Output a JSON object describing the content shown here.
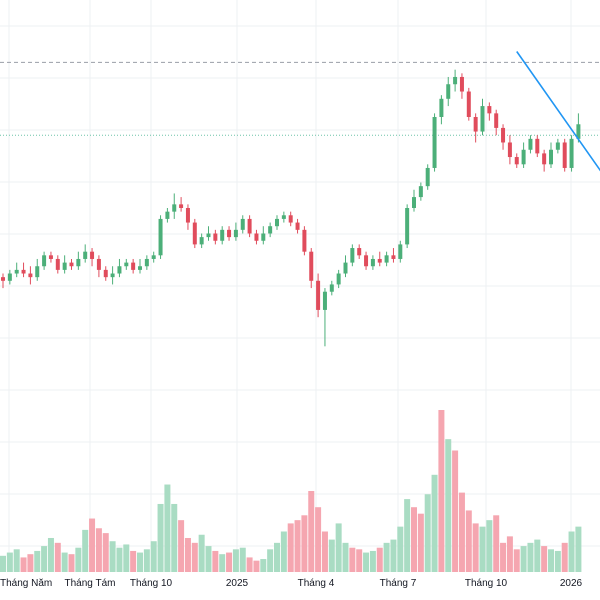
{
  "chart_data": {
    "type": "candlestick",
    "x_tick_labels": [
      "Tháng Năm",
      "Tháng Tám",
      "Tháng 10",
      "2025",
      "Tháng 4",
      "Tháng 7",
      "Tháng 10",
      "2026"
    ],
    "price_range": [
      0,
      100
    ],
    "volume_range": [
      0,
      100
    ],
    "grid": true,
    "reference_lines": [
      {
        "style": "dashed",
        "price": 90
      },
      {
        "style": "dotted",
        "price": 70
      }
    ],
    "trendline": {
      "from": {
        "index": 75,
        "price": 93
      },
      "to": {
        "index": 103,
        "price": 18
      }
    },
    "colors": {
      "up": "#4caf79",
      "down": "#e04c5c",
      "up_volume": "#a9dcc3",
      "down_volume": "#f5a6b0",
      "trendline": "#2196f3",
      "grid": "#eef0f3",
      "ref_dashed": "#9a9ea8",
      "ref_dotted": "#6fc3a8"
    },
    "candles": [
      [
        31,
        30,
        32,
        28
      ],
      [
        30,
        32,
        33,
        29
      ],
      [
        32,
        33,
        35,
        31
      ],
      [
        33,
        32,
        35,
        31
      ],
      [
        32,
        31,
        34,
        29
      ],
      [
        31,
        34,
        36,
        30
      ],
      [
        34,
        37,
        38,
        33
      ],
      [
        37,
        36,
        38,
        35
      ],
      [
        36,
        33,
        37,
        32
      ],
      [
        33,
        35,
        37,
        32
      ],
      [
        35,
        34,
        36,
        33
      ],
      [
        34,
        36,
        38,
        33
      ],
      [
        36,
        38,
        40,
        35
      ],
      [
        38,
        36,
        39,
        34
      ],
      [
        36,
        33,
        37,
        31
      ],
      [
        33,
        31,
        34,
        30
      ],
      [
        31,
        32,
        34,
        29
      ],
      [
        32,
        34,
        36,
        31
      ],
      [
        34,
        35,
        36,
        33
      ],
      [
        35,
        33,
        36,
        32
      ],
      [
        33,
        34,
        36,
        32
      ],
      [
        34,
        36,
        37,
        33
      ],
      [
        36,
        37,
        38,
        35
      ],
      [
        37,
        47,
        48,
        36
      ],
      [
        47,
        49,
        50,
        46
      ],
      [
        49,
        51,
        54,
        47
      ],
      [
        51,
        50,
        53,
        49
      ],
      [
        50,
        46,
        51,
        44
      ],
      [
        46,
        40,
        47,
        39
      ],
      [
        40,
        42,
        43,
        39
      ],
      [
        42,
        43,
        45,
        41
      ],
      [
        43,
        41,
        44,
        40
      ],
      [
        41,
        44,
        45,
        40
      ],
      [
        44,
        42,
        45,
        41
      ],
      [
        42,
        44,
        46,
        41
      ],
      [
        44,
        47,
        48,
        43
      ],
      [
        47,
        43,
        48,
        42
      ],
      [
        43,
        41,
        44,
        40
      ],
      [
        41,
        43,
        45,
        40
      ],
      [
        43,
        45,
        46,
        42
      ],
      [
        45,
        47,
        48,
        44
      ],
      [
        47,
        48,
        49,
        46
      ],
      [
        48,
        46,
        49,
        45
      ],
      [
        46,
        44,
        47,
        43
      ],
      [
        44,
        38,
        45,
        37
      ],
      [
        38,
        30,
        39,
        28
      ],
      [
        30,
        22,
        32,
        20
      ],
      [
        22,
        27,
        28,
        12
      ],
      [
        27,
        29,
        30,
        26
      ],
      [
        29,
        32,
        33,
        28
      ],
      [
        32,
        35,
        37,
        31
      ],
      [
        35,
        39,
        40,
        34
      ],
      [
        39,
        37,
        40,
        36
      ],
      [
        37,
        34,
        38,
        33
      ],
      [
        34,
        36,
        37,
        33
      ],
      [
        36,
        35,
        38,
        34
      ],
      [
        35,
        37,
        38,
        34
      ],
      [
        37,
        36,
        39,
        35
      ],
      [
        36,
        40,
        41,
        35
      ],
      [
        40,
        50,
        51,
        39
      ],
      [
        50,
        53,
        55,
        49
      ],
      [
        53,
        56,
        57,
        52
      ],
      [
        56,
        61,
        62,
        55
      ],
      [
        61,
        75,
        76,
        60
      ],
      [
        75,
        80,
        81,
        73
      ],
      [
        80,
        84,
        86,
        78
      ],
      [
        84,
        86,
        88,
        82
      ],
      [
        86,
        82,
        87,
        80
      ],
      [
        82,
        75,
        83,
        74
      ],
      [
        75,
        71,
        76,
        68
      ],
      [
        71,
        78,
        80,
        70
      ],
      [
        78,
        76,
        79,
        74
      ],
      [
        76,
        72,
        77,
        70
      ],
      [
        72,
        68,
        73,
        66
      ],
      [
        68,
        64,
        70,
        62
      ],
      [
        64,
        62,
        65,
        61
      ],
      [
        62,
        66,
        68,
        61
      ],
      [
        66,
        69,
        70,
        65
      ],
      [
        69,
        65,
        70,
        64
      ],
      [
        65,
        62,
        66,
        60
      ],
      [
        62,
        66,
        68,
        61
      ],
      [
        66,
        68,
        69,
        65
      ],
      [
        68,
        61,
        69,
        60
      ],
      [
        61,
        69,
        70,
        60
      ],
      [
        69,
        73,
        76,
        68
      ]
    ],
    "volume": [
      [
        10,
        "up"
      ],
      [
        12,
        "up"
      ],
      [
        14,
        "up"
      ],
      [
        9,
        "down"
      ],
      [
        11,
        "down"
      ],
      [
        13,
        "up"
      ],
      [
        16,
        "up"
      ],
      [
        21,
        "up"
      ],
      [
        18,
        "down"
      ],
      [
        12,
        "up"
      ],
      [
        11,
        "down"
      ],
      [
        15,
        "up"
      ],
      [
        26,
        "up"
      ],
      [
        33,
        "down"
      ],
      [
        27,
        "down"
      ],
      [
        24,
        "down"
      ],
      [
        19,
        "up"
      ],
      [
        15,
        "up"
      ],
      [
        17,
        "up"
      ],
      [
        13,
        "down"
      ],
      [
        12,
        "up"
      ],
      [
        14,
        "up"
      ],
      [
        19,
        "up"
      ],
      [
        42,
        "up"
      ],
      [
        54,
        "up"
      ],
      [
        42,
        "up"
      ],
      [
        32,
        "down"
      ],
      [
        21,
        "down"
      ],
      [
        18,
        "down"
      ],
      [
        23,
        "up"
      ],
      [
        16,
        "up"
      ],
      [
        13,
        "down"
      ],
      [
        11,
        "up"
      ],
      [
        12,
        "down"
      ],
      [
        14,
        "up"
      ],
      [
        15,
        "up"
      ],
      [
        9,
        "down"
      ],
      [
        7,
        "down"
      ],
      [
        8,
        "up"
      ],
      [
        14,
        "up"
      ],
      [
        18,
        "up"
      ],
      [
        25,
        "up"
      ],
      [
        30,
        "down"
      ],
      [
        32,
        "down"
      ],
      [
        35,
        "down"
      ],
      [
        50,
        "down"
      ],
      [
        40,
        "down"
      ],
      [
        25,
        "down"
      ],
      [
        20,
        "up"
      ],
      [
        30,
        "up"
      ],
      [
        18,
        "up"
      ],
      [
        15,
        "down"
      ],
      [
        14,
        "down"
      ],
      [
        12,
        "up"
      ],
      [
        13,
        "up"
      ],
      [
        15,
        "down"
      ],
      [
        18,
        "up"
      ],
      [
        20,
        "up"
      ],
      [
        28,
        "up"
      ],
      [
        45,
        "up"
      ],
      [
        40,
        "down"
      ],
      [
        36,
        "down"
      ],
      [
        48,
        "up"
      ],
      [
        60,
        "up"
      ],
      [
        100,
        "down"
      ],
      [
        82,
        "up"
      ],
      [
        75,
        "down"
      ],
      [
        49,
        "down"
      ],
      [
        38,
        "down"
      ],
      [
        30,
        "down"
      ],
      [
        28,
        "up"
      ],
      [
        32,
        "up"
      ],
      [
        35,
        "down"
      ],
      [
        18,
        "down"
      ],
      [
        22,
        "down"
      ],
      [
        14,
        "down"
      ],
      [
        16,
        "up"
      ],
      [
        18,
        "up"
      ],
      [
        20,
        "up"
      ],
      [
        16,
        "down"
      ],
      [
        14,
        "up"
      ],
      [
        13,
        "up"
      ],
      [
        18,
        "down"
      ],
      [
        25,
        "up"
      ],
      [
        28,
        "up"
      ]
    ]
  }
}
